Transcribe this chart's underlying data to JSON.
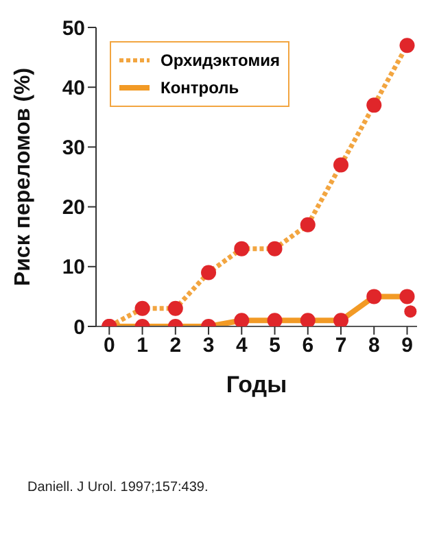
{
  "chart_data": {
    "type": "line",
    "xlabel": "Годы",
    "ylabel": "Риск переломов (%)",
    "x": [
      0,
      1,
      2,
      3,
      4,
      5,
      6,
      7,
      8,
      9
    ],
    "series": [
      {
        "name": "Орхидэктомия",
        "color": "#f2a540",
        "line_style": "dotted",
        "values": [
          0,
          3,
          3,
          9,
          13,
          13,
          17,
          27,
          37,
          47
        ]
      },
      {
        "name": "Контроль",
        "color": "#f29a25",
        "line_style": "solid",
        "values": [
          0,
          0,
          0,
          0,
          1,
          1,
          1,
          1,
          5,
          5
        ]
      },
      {
        "type": "scatter",
        "color": "#e0262a",
        "x": [
          9.1
        ],
        "values": [
          2.5
        ]
      }
    ],
    "marker": "circle",
    "xlim": [
      -0.4,
      9.3
    ],
    "xticks": [
      0,
      1,
      2,
      3,
      4,
      5,
      6,
      7,
      8,
      9
    ],
    "ylim": [
      0,
      50
    ],
    "yticks": [
      0,
      10,
      20,
      30,
      40,
      50
    ],
    "grid": false,
    "legend": "top left",
    "annotations": [
      "Daniell. J Urol. 1997;157:439."
    ]
  }
}
